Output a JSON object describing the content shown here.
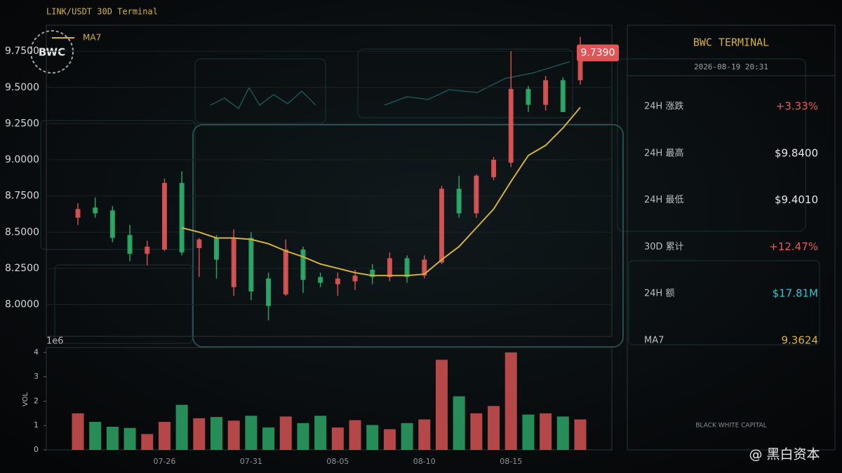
{
  "chart_data": [
    {
      "type": "candlestick",
      "title": "LINK/USDT  30D Terminal",
      "open": [
        8.6,
        8.67,
        8.65,
        8.48,
        8.35,
        8.38,
        8.84,
        8.39,
        8.46,
        8.12,
        8.46,
        8.18,
        8.07,
        8.38,
        8.19,
        8.14,
        8.16,
        8.24,
        8.19,
        8.32,
        8.2,
        8.29,
        8.8,
        8.63,
        8.88,
        8.98,
        9.49,
        9.38,
        9.55,
        9.55
      ],
      "high": [
        8.7,
        8.74,
        8.68,
        8.55,
        8.44,
        8.87,
        8.92,
        8.46,
        8.48,
        8.52,
        8.5,
        8.22,
        8.45,
        8.4,
        8.22,
        8.22,
        8.24,
        8.28,
        8.36,
        8.34,
        8.34,
        8.82,
        8.89,
        8.9,
        9.02,
        9.75,
        9.51,
        9.58,
        9.57,
        9.85
      ],
      "low": [
        8.55,
        8.6,
        8.43,
        8.3,
        8.27,
        8.37,
        8.34,
        8.19,
        8.18,
        8.06,
        8.03,
        7.89,
        8.06,
        8.08,
        8.12,
        8.06,
        8.1,
        8.14,
        8.16,
        8.15,
        8.18,
        8.28,
        8.6,
        8.6,
        8.86,
        8.95,
        9.33,
        9.34,
        9.33,
        9.52
      ],
      "close": [
        8.66,
        8.63,
        8.46,
        8.35,
        8.4,
        8.84,
        8.36,
        8.45,
        8.31,
        8.46,
        8.09,
        7.99,
        8.38,
        8.17,
        8.15,
        8.18,
        8.2,
        8.19,
        8.32,
        8.19,
        8.31,
        8.8,
        8.63,
        8.89,
        9.0,
        9.49,
        9.38,
        9.55,
        9.33,
        9.739
      ],
      "up_color": "#e05656",
      "down_color": "#2fae6c",
      "series": [
        {
          "name": "MA7",
          "color": "#d4b13c",
          "values": [
            null,
            null,
            null,
            null,
            null,
            null,
            8.53,
            8.5,
            8.46,
            8.46,
            8.45,
            8.42,
            8.37,
            8.33,
            8.28,
            8.25,
            8.22,
            8.2,
            8.2,
            8.2,
            8.21,
            8.31,
            8.4,
            8.53,
            8.66,
            8.85,
            9.03,
            9.1,
            9.22,
            9.3624
          ]
        }
      ],
      "last_price": {
        "value": 9.739,
        "label": "9.7390"
      },
      "ylim": [
        7.78,
        9.93
      ],
      "yticks": [
        {
          "value": 8,
          "label": "8.0000"
        },
        {
          "value": 8.25,
          "label": "8.2500"
        },
        {
          "value": 8.5,
          "label": "8.5000"
        },
        {
          "value": 8.75,
          "label": "8.7500"
        },
        {
          "value": 9,
          "label": "9.0000"
        },
        {
          "value": 9.25,
          "label": "9.2500"
        },
        {
          "value": 9.5,
          "label": "9.5000"
        },
        {
          "value": 9.75,
          "label": "9.7500"
        }
      ],
      "grid": true,
      "legend": "top-left"
    },
    {
      "type": "bar",
      "ylabel": "VOL",
      "offset_label": "1e6",
      "categories": [
        null,
        null,
        null,
        null,
        null,
        "07-26",
        null,
        null,
        null,
        null,
        "07-31",
        null,
        null,
        null,
        null,
        "08-05",
        null,
        null,
        null,
        null,
        "08-10",
        null,
        null,
        null,
        null,
        "08-15",
        null,
        null,
        null,
        null
      ],
      "values": [
        1.5,
        1.15,
        0.95,
        0.9,
        0.65,
        1.15,
        1.85,
        1.3,
        1.35,
        1.2,
        1.4,
        0.92,
        1.37,
        1.1,
        1.4,
        0.92,
        1.22,
        1.02,
        0.85,
        1.1,
        1.25,
        3.7,
        2.2,
        1.5,
        1.8,
        4.0,
        1.45,
        1.5,
        1.37,
        1.25
      ],
      "ylim": [
        0,
        4.2
      ],
      "yticks": [
        0,
        1,
        2,
        3,
        4
      ]
    }
  ],
  "logo": "BWC",
  "panel": {
    "title": "BWC TERMINAL",
    "timestamp": "2026-08-19 20:31",
    "rows": [
      {
        "label": "24H 涨跌",
        "value": "+3.33%",
        "color": "#e85a5a"
      },
      {
        "label": "24H 最高",
        "value": "$9.8400",
        "color": "#e8e8e8"
      },
      {
        "label": "24H 最低",
        "value": "$9.4010",
        "color": "#e8e8e8"
      },
      {
        "label": "30D 累计",
        "value": "+12.47%",
        "color": "#e85a5a"
      },
      {
        "label": "24H 额",
        "value": "$17.81M",
        "color": "#2cc6d8"
      },
      {
        "label": "MA7",
        "value": "9.3624",
        "color": "#d4b13c"
      }
    ],
    "footer": "BLACK WHITE CAPITAL"
  },
  "watermark": "@ 黑白资本"
}
